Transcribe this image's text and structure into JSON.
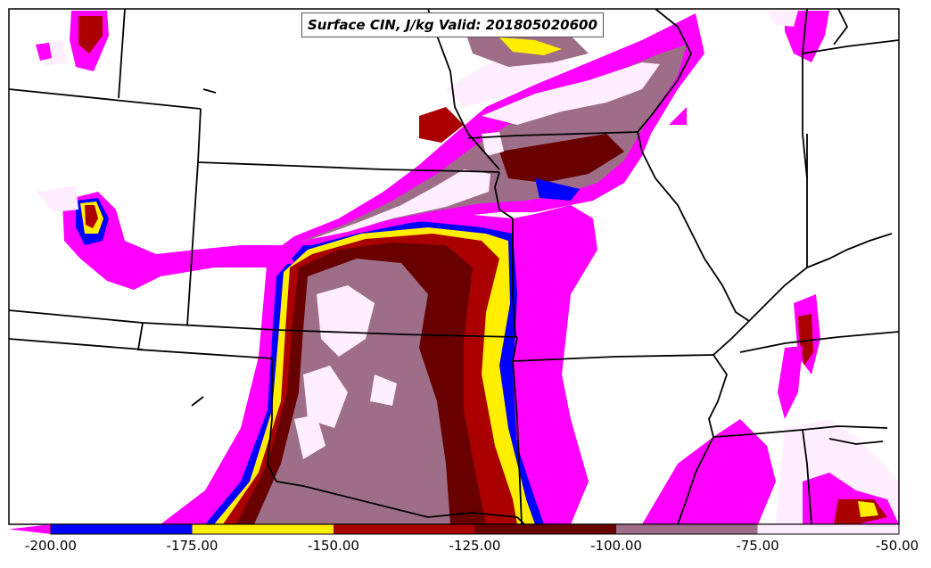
{
  "title": "Surface CIN, J/kg Valid: 201805020600",
  "colorbar": {
    "colors": [
      "#ff00ff",
      "#0000ff",
      "#ffee00",
      "#aa0000",
      "#680000",
      "#9e6e88",
      "#ffeeff"
    ],
    "tick_labels": [
      "-200.00",
      "-175.00",
      "-150.00",
      "-125.00",
      "-100.00",
      "-75.00",
      "-50.00"
    ]
  },
  "chart_data": {
    "type": "heatmap",
    "title": "Surface CIN, J/kg Valid: 201805020600",
    "variable": "Surface CIN",
    "units": "J/kg",
    "valid_time": "201805020600",
    "levels": [
      -200,
      -175,
      -150,
      -125,
      -100,
      -75,
      -50
    ],
    "level_colors": [
      "#ff00ff",
      "#0000ff",
      "#ffee00",
      "#aa0000",
      "#680000",
      "#9e6e88",
      "#ffeeff"
    ],
    "colorbar_extend": "min"
  }
}
